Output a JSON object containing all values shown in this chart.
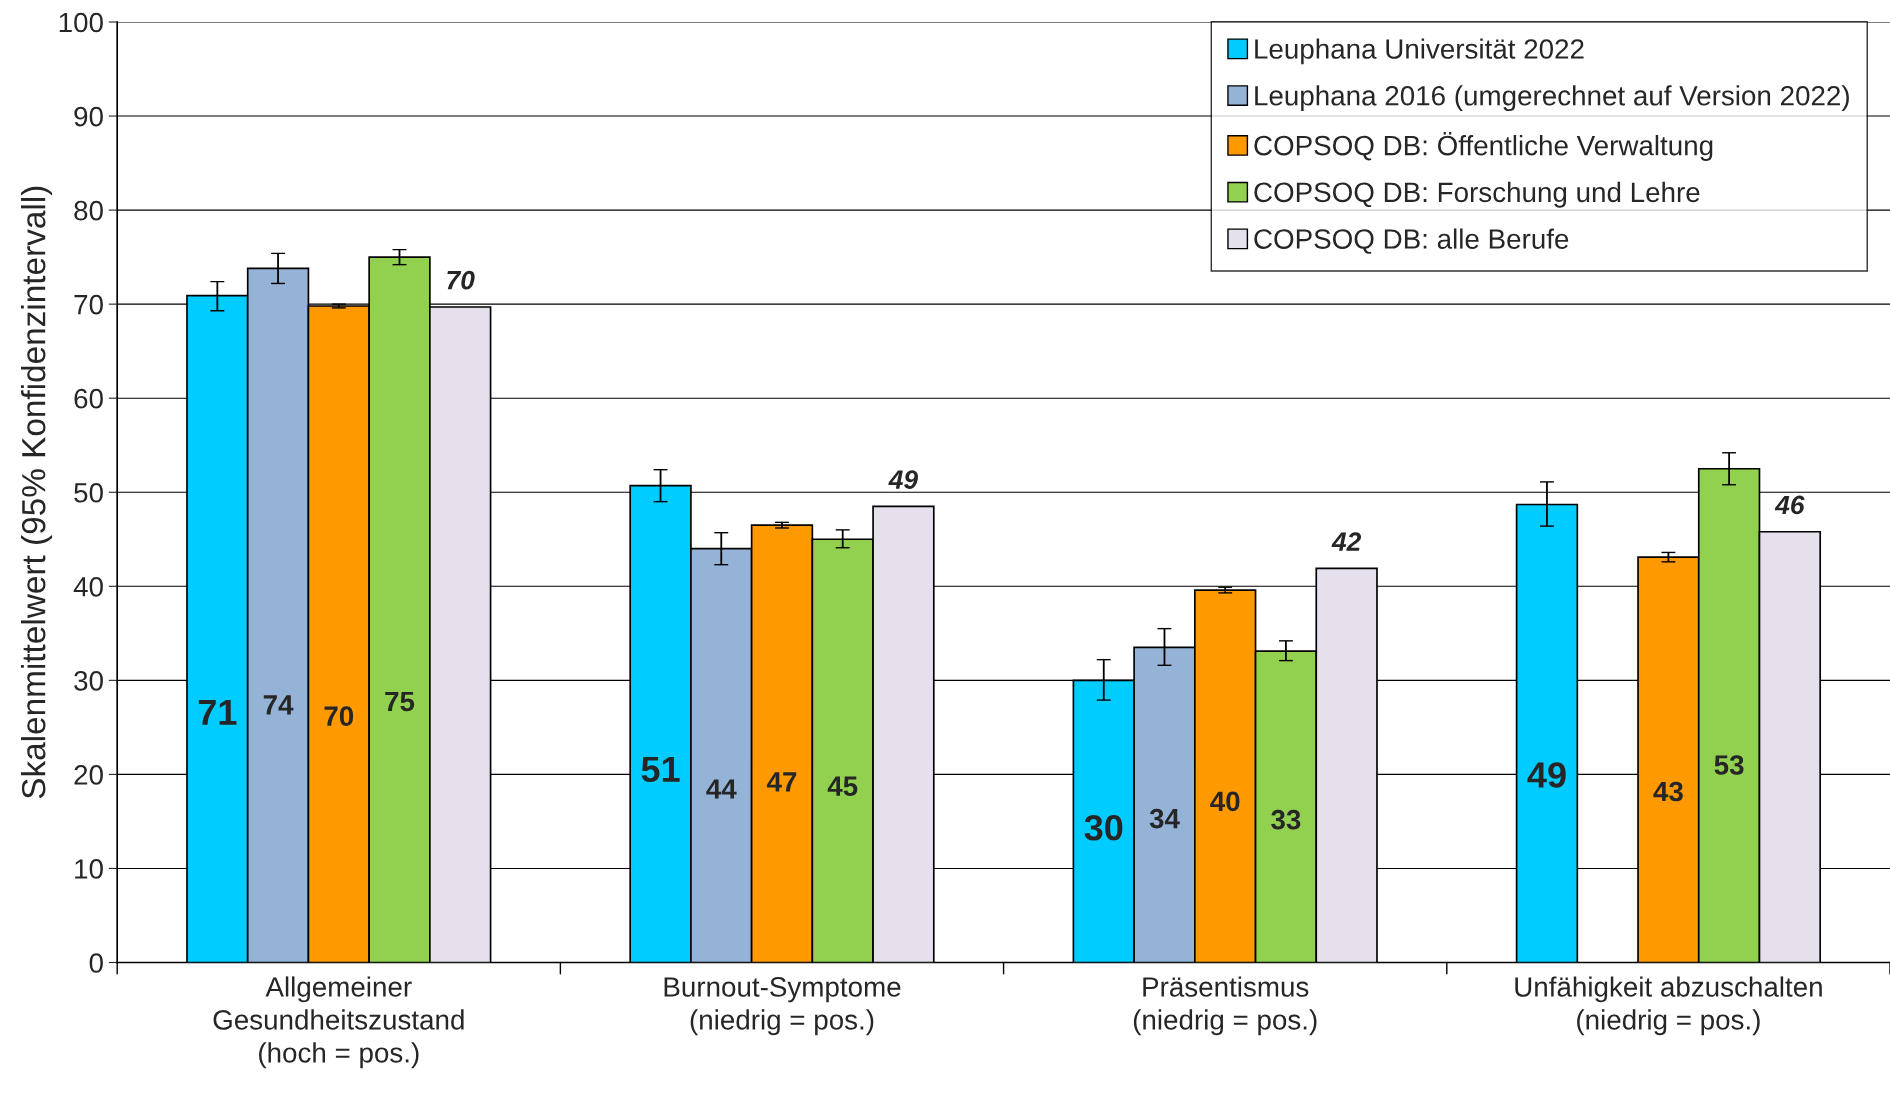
{
  "chart_data": {
    "type": "bar",
    "ylabel": "Skalenmittelwert (95% Konfidenzintervall)",
    "categories": [
      "Allgemeiner\nGesundheitszustand\n(hoch = pos.)",
      "Burnout-Symptome\n(niedrig = pos.)",
      "Präsentismus\n(niedrig = pos.)",
      "Unfähigkeit abzuschalten\n(niedrig = pos.)"
    ],
    "series": [
      {
        "name": "Leuphana Universität 2022",
        "color": "#00ccff",
        "values": [
          70.9,
          50.7,
          30.0,
          48.7
        ],
        "errors": [
          [
            69.3,
            72.4
          ],
          [
            49.0,
            52.4
          ],
          [
            27.9,
            32.2
          ],
          [
            46.4,
            51.1
          ]
        ],
        "value_labels": [
          "71",
          "51",
          "30",
          "49"
        ]
      },
      {
        "name": "Leuphana 2016 (umgerechnet auf Version 2022)",
        "color": "#95b3d7",
        "values": [
          73.8,
          44.0,
          33.5,
          null
        ],
        "errors": [
          [
            72.2,
            75.4
          ],
          [
            42.3,
            45.7
          ],
          [
            31.6,
            35.5
          ],
          null
        ],
        "value_labels": [
          "74",
          "44",
          "34",
          null
        ]
      },
      {
        "name": "COPSOQ DB: Öffentliche Verwaltung",
        "color": "#ff9900",
        "values": [
          69.8,
          46.5,
          39.6,
          43.1
        ],
        "errors": [
          [
            69.6,
            70.0
          ],
          [
            46.2,
            46.8
          ],
          [
            39.3,
            39.9
          ],
          [
            42.6,
            43.6
          ]
        ],
        "value_labels": [
          "70",
          "47",
          "40",
          "43"
        ]
      },
      {
        "name": "COPSOQ DB: Forschung und Lehre",
        "color": "#92d050",
        "values": [
          75.0,
          45.0,
          33.1,
          52.5
        ],
        "errors": [
          [
            74.2,
            75.8
          ],
          [
            44.1,
            46.0
          ],
          [
            32.1,
            34.2
          ],
          [
            50.8,
            54.2
          ]
        ],
        "value_labels": [
          "75",
          "45",
          "33",
          "53"
        ]
      },
      {
        "name": "COPSOQ DB: alle Berufe",
        "color": "#e6e0ec",
        "values": [
          69.7,
          48.5,
          41.9,
          45.8
        ],
        "value_labels": [
          "70",
          "49",
          "42",
          "46"
        ]
      }
    ],
    "ylim": [
      0,
      100
    ],
    "yticks": [
      0,
      10,
      20,
      30,
      40,
      50,
      60,
      70,
      80,
      90,
      100
    ],
    "grid": "y",
    "legend": "top right"
  }
}
